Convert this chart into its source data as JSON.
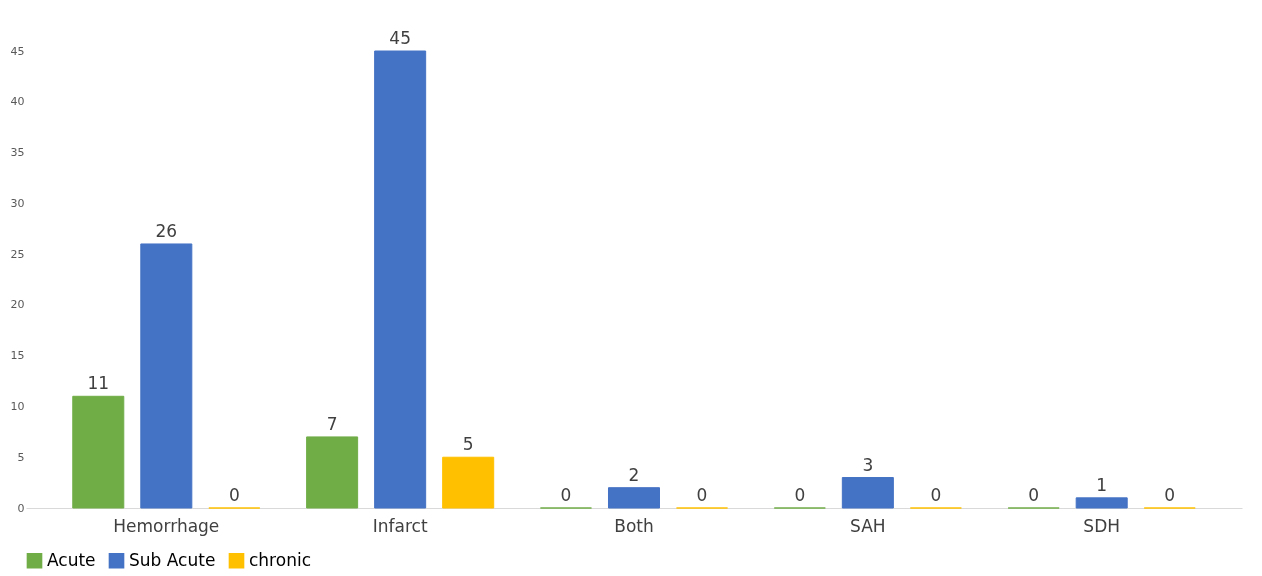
{
  "chart_data": {
    "type": "bar",
    "categories": [
      "Hemorrhage",
      "Infarct",
      "Both",
      "SAH",
      "SDH"
    ],
    "series": [
      {
        "name": "Acute",
        "color": "#70ad47",
        "values": [
          11,
          7,
          0,
          0,
          0
        ]
      },
      {
        "name": "Sub Acute",
        "color": "#4472c4",
        "values": [
          26,
          45,
          2,
          3,
          1
        ]
      },
      {
        "name": "chronic",
        "color": "#ffc000",
        "values": [
          0,
          5,
          0,
          0,
          0
        ]
      }
    ],
    "ylim": [
      0,
      45
    ],
    "yticks": [
      0,
      5,
      10,
      15,
      20,
      25,
      30,
      35,
      40,
      45
    ],
    "grid": false,
    "legend": "bottom",
    "data_labels": true
  }
}
